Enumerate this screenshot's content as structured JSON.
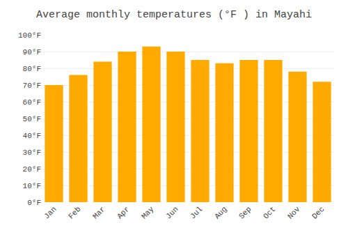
{
  "chart_data": {
    "type": "bar",
    "title": "Average monthly temperatures (°F ) in Mayahi",
    "categories": [
      "Jan",
      "Feb",
      "Mar",
      "Apr",
      "May",
      "Jun",
      "Jul",
      "Aug",
      "Sep",
      "Oct",
      "Nov",
      "Dec"
    ],
    "values": [
      70,
      76,
      84,
      90,
      93,
      90,
      85,
      83,
      85,
      85,
      78,
      72
    ],
    "color": "#FFAA00",
    "ylim": [
      0,
      100
    ],
    "yticks": [
      {
        "value": 0,
        "label": "0°F"
      },
      {
        "value": 10,
        "label": "10°F"
      },
      {
        "value": 20,
        "label": "20°F"
      },
      {
        "value": 30,
        "label": "30°F"
      },
      {
        "value": 40,
        "label": "40°F"
      },
      {
        "value": 50,
        "label": "50°F"
      },
      {
        "value": 60,
        "label": "60°F"
      },
      {
        "value": 70,
        "label": "70°F"
      },
      {
        "value": 80,
        "label": "80°F"
      },
      {
        "value": 90,
        "label": "90°F"
      },
      {
        "value": 100,
        "label": "100°F"
      }
    ],
    "grid": true
  }
}
